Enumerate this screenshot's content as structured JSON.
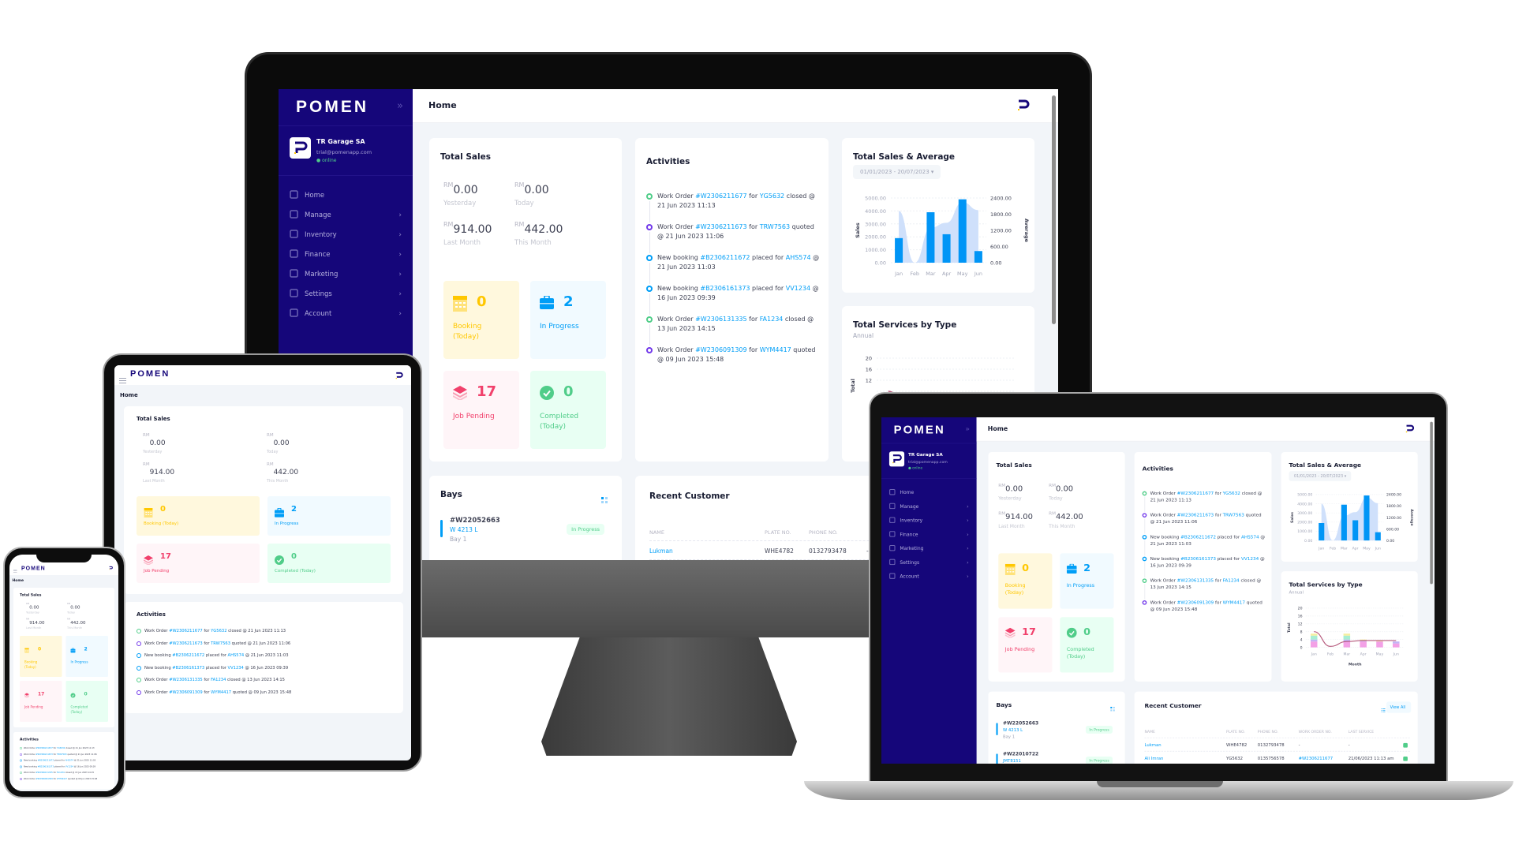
{
  "app": {
    "logo": "POMEN",
    "page_title": "Home"
  },
  "profile": {
    "name": "TR Garage SA",
    "email": "trial@pomenapp.com",
    "status": "online"
  },
  "sidebar": {
    "items": [
      {
        "label": "Home",
        "icon": "home-icon",
        "has_submenu": false
      },
      {
        "label": "Manage",
        "icon": "manage-icon",
        "has_submenu": true
      },
      {
        "label": "Inventory",
        "icon": "tools-icon",
        "has_submenu": true
      },
      {
        "label": "Finance",
        "icon": "money-icon",
        "has_submenu": true
      },
      {
        "label": "Marketing",
        "icon": "marketing-icon",
        "has_submenu": true
      },
      {
        "label": "Settings",
        "icon": "settings-icon",
        "has_submenu": true
      },
      {
        "label": "Account",
        "icon": "account-icon",
        "has_submenu": true
      }
    ]
  },
  "total_sales": {
    "title": "Total Sales",
    "currency": "RM",
    "stats": [
      {
        "value": "0.00",
        "label": "Yesterday"
      },
      {
        "value": "0.00",
        "label": "Today"
      },
      {
        "value": "914.00",
        "label": "Last Month"
      },
      {
        "value": "442.00",
        "label": "This Month"
      }
    ]
  },
  "tiles": [
    {
      "value": "0",
      "label": "Booking (Today)",
      "icon": "calendar-icon",
      "color": "#ffc700",
      "bg": "#fff8dd"
    },
    {
      "value": "2",
      "label": "In Progress",
      "icon": "briefcase-icon",
      "color": "#009ef7",
      "bg": "#f1faff"
    },
    {
      "value": "17",
      "label": "Job Pending",
      "icon": "layers-icon",
      "color": "#f1416c",
      "bg": "#fff5f8"
    },
    {
      "value": "0",
      "label": "Completed (Today)",
      "icon": "check-circle-icon",
      "color": "#50cd89",
      "bg": "#e8fff3"
    }
  ],
  "activities": {
    "title": "Activities",
    "items": [
      {
        "pre": "Work Order ",
        "ref": "#W2306211677",
        "mid": " for ",
        "target": "YG5632",
        "post": " closed",
        "time": " @ 21 Jun 2023 11:13",
        "color": "#50cd89"
      },
      {
        "pre": "Work Order ",
        "ref": "#W2306211673",
        "mid": " for ",
        "target": "TRW7563",
        "post": " quoted",
        "time": " @ 21 Jun 2023 11:06",
        "color": "#7239ea"
      },
      {
        "pre": "New booking ",
        "ref": "#B2306211672",
        "mid": " placed for ",
        "target": "AHS574",
        "post": "",
        "time": " @ 21 Jun 2023 11:03",
        "color": "#009ef7"
      },
      {
        "pre": "New booking ",
        "ref": "#B2306161373",
        "mid": " placed for ",
        "target": "VV1234",
        "post": "",
        "time": " @ 16 Jun 2023 09:39",
        "color": "#009ef7"
      },
      {
        "pre": "Work Order ",
        "ref": "#W2306131335",
        "mid": " for ",
        "target": "FA1234",
        "post": " closed",
        "time": " @ 13 Jun 2023 14:15",
        "color": "#50cd89"
      },
      {
        "pre": "Work Order ",
        "ref": "#W2306091309",
        "mid": " for ",
        "target": "WYM4417",
        "post": " quoted",
        "time": " @ 09 Jun 2023 15:48",
        "color": "#7239ea"
      }
    ]
  },
  "sales_average": {
    "title": "Total Sales & Average",
    "date_range": "01/01/2023 - 20/07/2023"
  },
  "services_by_type": {
    "title": "Total Services by Type",
    "subtitle": "Annual"
  },
  "chart_data": [
    {
      "type": "bar",
      "title": "Total Sales & Average",
      "categories": [
        "Jan",
        "Feb",
        "Mar",
        "Apr",
        "May",
        "Jun"
      ],
      "ylabel": "Sales",
      "y2label": "Average",
      "ylim": [
        0,
        5000
      ],
      "y2lim": [
        0,
        2400
      ],
      "yticks": [
        "0.00",
        "1000.00",
        "2000.00",
        "3000.00",
        "4000.00",
        "5000.00"
      ],
      "y2ticks": [
        "0.00",
        "600.00",
        "1200.00",
        "1800.00",
        "2400.00"
      ],
      "series": [
        {
          "kind": "bar",
          "axis": "left",
          "values": [
            1900,
            0,
            3900,
            2200,
            4900,
            900
          ],
          "color": "#0095f6"
        },
        {
          "kind": "area",
          "axis": "right",
          "values": [
            1920,
            0,
            1300,
            1480,
            2250,
            1950
          ],
          "color": "#cfe0fb"
        }
      ],
      "grid": true
    },
    {
      "type": "bar",
      "stacked": true,
      "title": "Total Services by Type",
      "subtitle": "Annual",
      "categories": [
        "Jan",
        "Feb",
        "Mar",
        "Apr",
        "May",
        "Jun"
      ],
      "xlabel": "Month",
      "ylabel": "Total",
      "ylim": [
        0,
        20
      ],
      "yticks": [
        "0",
        "4",
        "8",
        "12",
        "16",
        "20"
      ],
      "series": [
        {
          "kind": "bar",
          "values": [
            3,
            0,
            3,
            3,
            3,
            2
          ],
          "color": "#f3a0e6"
        },
        {
          "kind": "bar",
          "values": [
            1,
            0,
            1,
            0.5,
            0,
            1
          ],
          "color": "#c2b3f4"
        },
        {
          "kind": "bar",
          "values": [
            2,
            0,
            2,
            0,
            0,
            0
          ],
          "color": "#a7eed3"
        },
        {
          "kind": "bar",
          "values": [
            1,
            0,
            1,
            0.5,
            0.5,
            0
          ],
          "color": "#f6ee9f"
        },
        {
          "kind": "line",
          "values": [
            8,
            0.5,
            3,
            3.5,
            3.5,
            3.5
          ],
          "color": "#b5587b"
        }
      ],
      "grid": true
    }
  ],
  "bays": {
    "title": "Bays",
    "items": [
      {
        "order": "#W22052663",
        "plate": "W 4213 L",
        "bay": "Bay 1",
        "status": "In Progress"
      },
      {
        "order": "#W22010722",
        "plate": "JMT8151",
        "bay": "",
        "status": "In Progress"
      }
    ]
  },
  "recent_customer": {
    "title": "Recent Customer",
    "view_all": "View All",
    "columns": [
      "NAME",
      "PLATE NO.",
      "PHONE NO.",
      "WORK ORDER NO.",
      "LAST SERVICE"
    ],
    "rows": [
      [
        "Lukman",
        "WHE4782",
        "0132793478",
        "-",
        "-"
      ],
      [
        "Ali Imran",
        "YG5632",
        "0135756578",
        "#W2306211677",
        "21/06/2023 11:13 am"
      ]
    ]
  }
}
